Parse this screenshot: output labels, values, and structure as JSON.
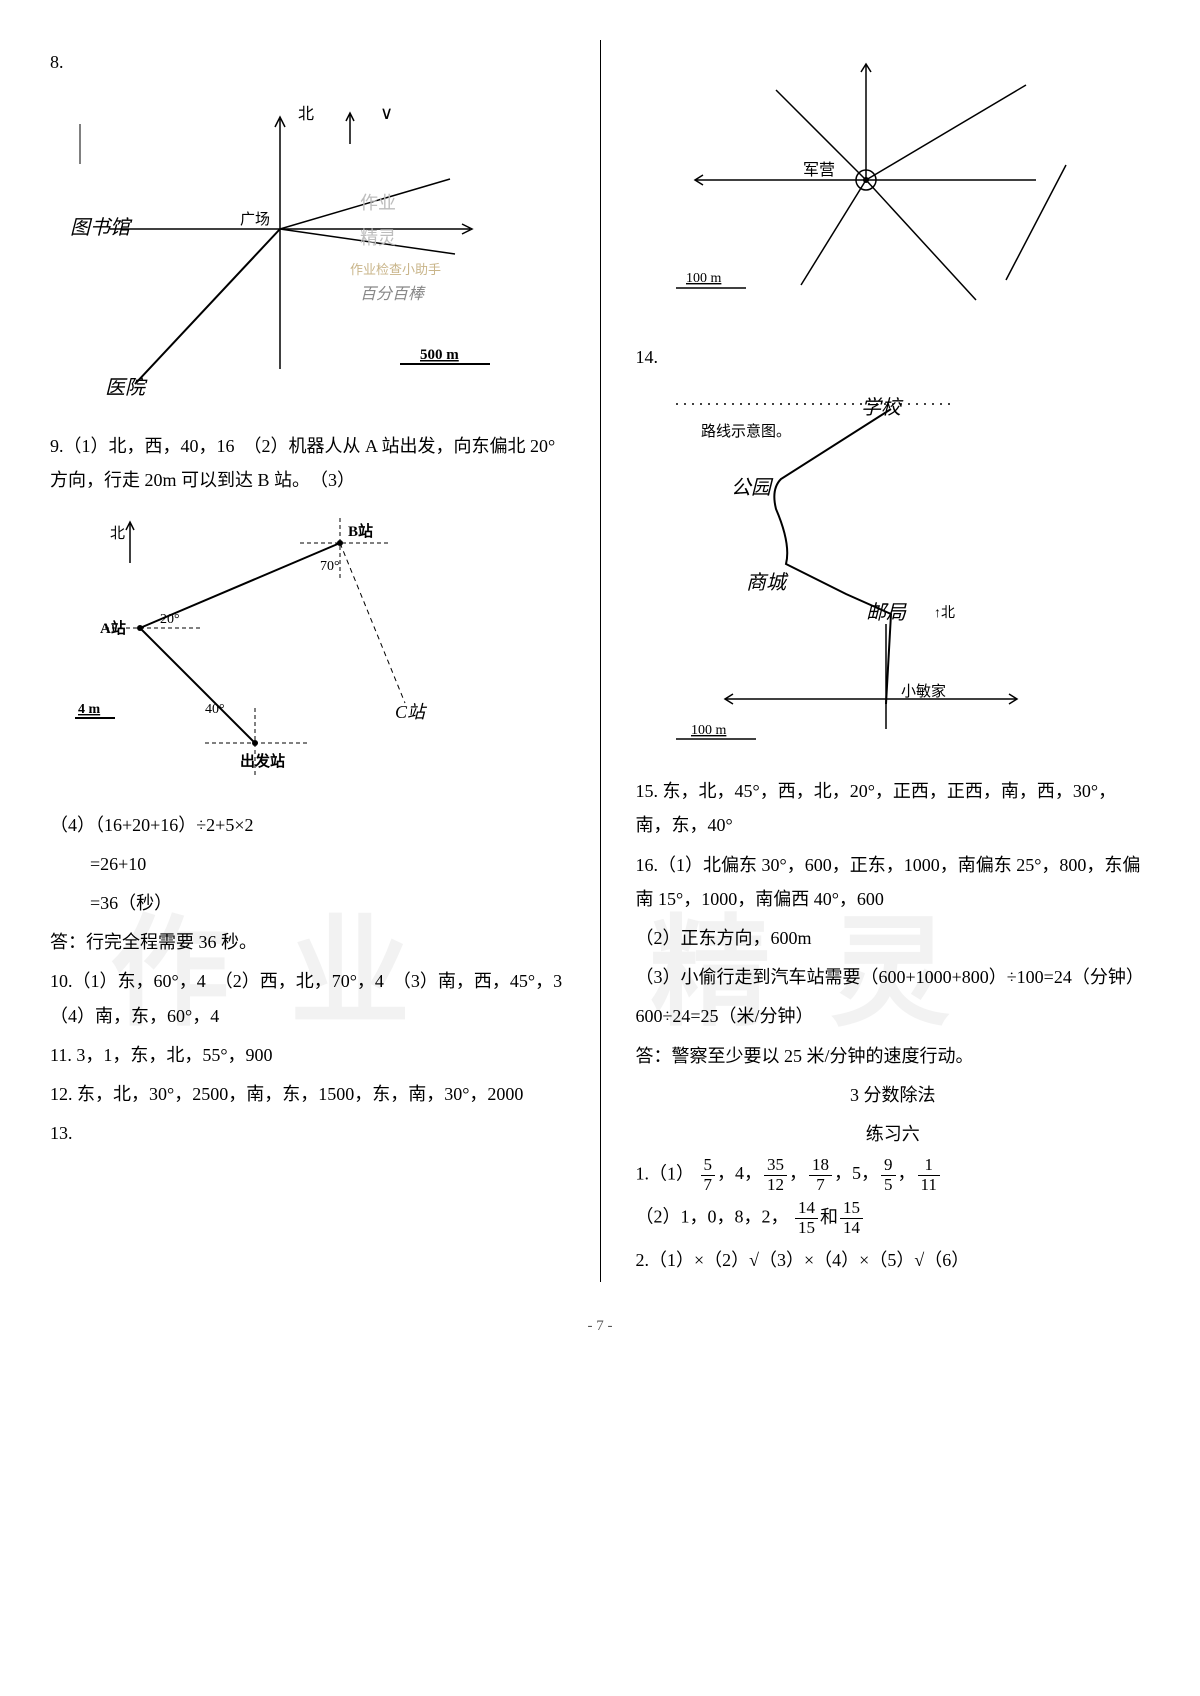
{
  "left": {
    "q8_label": "8.",
    "diagram8": {
      "north_label": "北",
      "plaza_label": "广场",
      "library_label": "图书馆",
      "hospital_label": "医院",
      "watermark1": "作业",
      "watermark2": "精灵",
      "watermark3": "作业检查小助手",
      "watermark4": "百分百棒",
      "scale_label": "500 m",
      "stroke": "#000000",
      "handwritten_stroke": "#000000"
    },
    "q9_text": "9.（1）北，西，40，16　（2）机器人从 A 站出发，向东偏北 20°方向，行走 20m 可以到达 B 站。　（3）",
    "diagram9": {
      "north_label": "北",
      "a_label": "A站",
      "b_label": "B站",
      "c_label": "C站",
      "start_label": "出发站",
      "angle1": "20°",
      "angle2": "70°",
      "angle3": "40°",
      "scale_label": "4 m",
      "stroke": "#000000"
    },
    "q9_calc_line1": "（4）（16+20+16）÷2+5×2",
    "q9_calc_line2": "=26+10",
    "q9_calc_line3": "=36（秒）",
    "q9_answer": "答：行完全程需要 36 秒。",
    "q10": "10.（1）东，60°，4　（2）西，北，70°，4　（3）南，西，45°，3　（4）南，东，60°，4",
    "q11": "11. 3，1，东，北，55°，900",
    "q12": "12. 东，北，30°，2500，南，东，1500，东，南，30°，2000",
    "q13_label": "13."
  },
  "right": {
    "diagram13": {
      "camp_label": "军营",
      "scale_label": "100 m",
      "stroke": "#000000"
    },
    "q14_label": "14.",
    "diagram14": {
      "school_label": "学校",
      "route_label": "路线示意图。",
      "park_label": "公园",
      "mall_label": "商城",
      "post_label": "邮局",
      "north_label": "↑北",
      "home_label": "小敏家",
      "scale_label": "100 m",
      "stroke": "#000000",
      "handwritten": "#000000"
    },
    "q15": "15. 东，北，45°，西，北，20°，正西，正西，南，西，30°，南，东，40°",
    "q16_1": "16.（1）北偏东 30°，600，正东，1000，南偏东 25°，800，东偏南 15°，1000，南偏西 40°，600",
    "q16_2": "（2）正东方向，600m",
    "q16_3a": "（3）小偷行走到汽车站需要（600+1000+800）÷100=24（分钟）",
    "q16_3b": "600÷24=25（米/分钟）",
    "q16_answer": "答：警察至少要以 25 米/分钟的速度行动。",
    "section_title": "3 分数除法",
    "exercise_title": "练习六",
    "ex1_prefix": "1.（1）",
    "ex1_fracs": [
      {
        "n": "5",
        "d": "7"
      },
      {
        "plain": "，4，"
      },
      {
        "n": "35",
        "d": "12"
      },
      {
        "plain": "，"
      },
      {
        "n": "18",
        "d": "7"
      },
      {
        "plain": "，5，"
      },
      {
        "n": "9",
        "d": "5"
      },
      {
        "plain": "，"
      },
      {
        "n": "1",
        "d": "11"
      }
    ],
    "ex1_2_prefix": "（2）1，0，8，2，",
    "ex1_2_fracs": [
      {
        "n": "14",
        "d": "15"
      },
      {
        "plain": "和"
      },
      {
        "n": "15",
        "d": "14"
      }
    ],
    "ex2": "2.（1）×（2）√（3）×（4）×（5）√（6）"
  },
  "footer": "- 7 -",
  "watermark_text": "作业",
  "watermark_text2": "精灵"
}
